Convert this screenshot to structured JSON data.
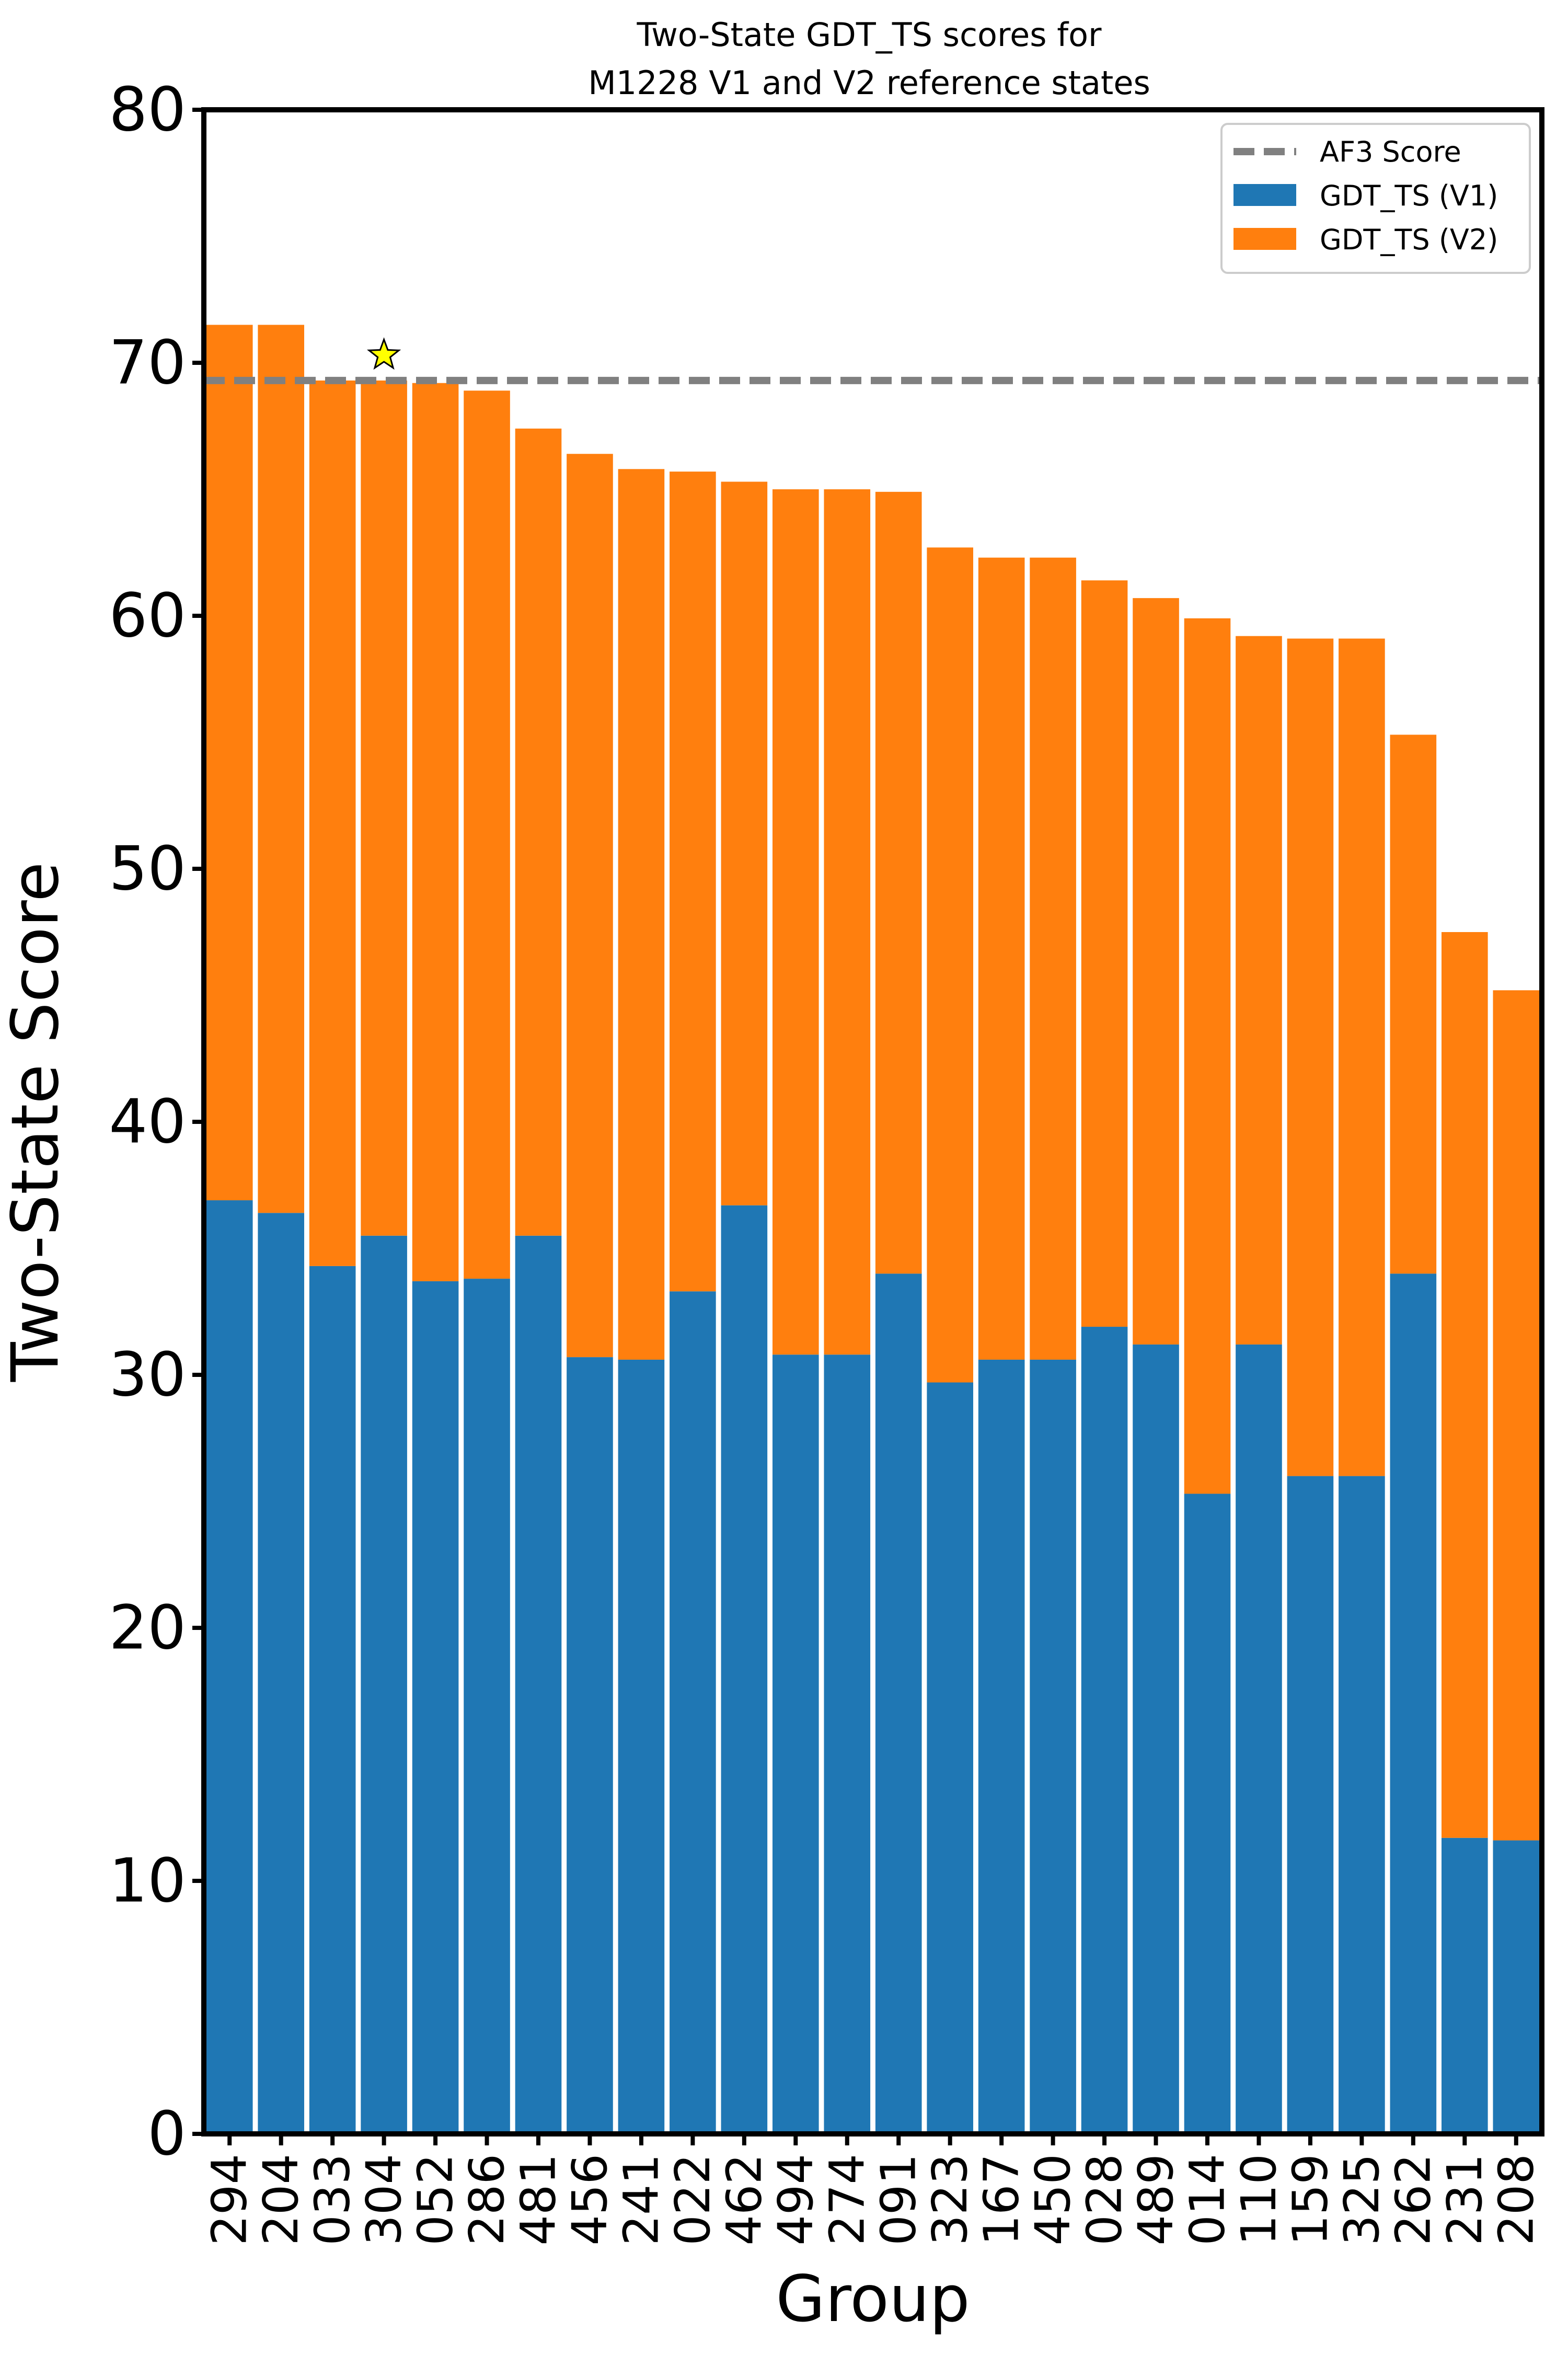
{
  "chart_data": {
    "type": "bar",
    "stacked": true,
    "title_lines": [
      "Two-State GDT_TS scores for",
      "M1228 V1 and V2 reference states"
    ],
    "xlabel": "Group",
    "ylabel": "Two-State Score",
    "ylim": [
      0,
      80
    ],
    "yticks": [
      0,
      10,
      20,
      30,
      40,
      50,
      60,
      70,
      80
    ],
    "grid": false,
    "legend_placement": "top-right",
    "categories": [
      "294",
      "204",
      "033",
      "304",
      "052",
      "286",
      "481",
      "456",
      "241",
      "022",
      "462",
      "494",
      "274",
      "091",
      "323",
      "167",
      "450",
      "028",
      "489",
      "014",
      "110",
      "159",
      "325",
      "262",
      "231",
      "208"
    ],
    "series": [
      {
        "name": "GDT_TS (V1)",
        "color": "#1f77b4",
        "values": [
          36.9,
          36.4,
          34.3,
          35.5,
          33.7,
          33.8,
          35.5,
          30.7,
          30.6,
          33.3,
          36.7,
          30.8,
          30.8,
          34.0,
          29.7,
          30.6,
          30.6,
          31.9,
          31.2,
          25.3,
          31.2,
          26.0,
          26.0,
          34.0,
          11.7,
          11.6
        ]
      },
      {
        "name": "GDT_TS (V2)",
        "color": "#ff7f0e",
        "values": [
          34.6,
          35.1,
          35.0,
          33.8,
          35.5,
          35.1,
          31.9,
          35.7,
          35.2,
          32.4,
          28.6,
          34.2,
          34.2,
          30.9,
          33.0,
          31.7,
          31.7,
          29.5,
          29.5,
          34.6,
          28.0,
          33.1,
          33.1,
          21.3,
          35.8,
          33.6
        ]
      }
    ],
    "reference_line": {
      "name": "AF3 Score",
      "value": 69.3,
      "color": "#808080",
      "style": "dashed"
    },
    "marker": {
      "symbol": "star-icon",
      "category": "304",
      "value": 70.3,
      "color": "#ffff00"
    }
  }
}
